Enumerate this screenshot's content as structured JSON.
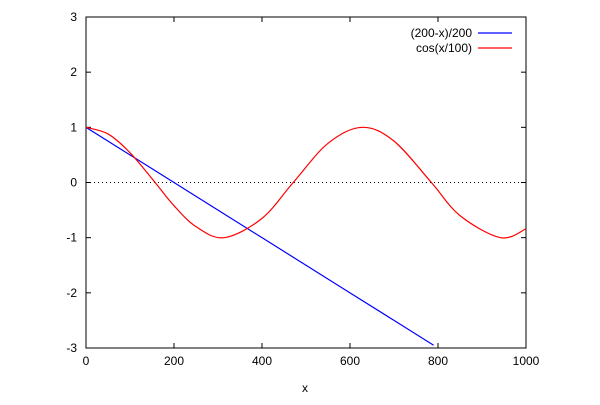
{
  "chart_data": {
    "type": "line",
    "title": "",
    "xlabel": "x",
    "ylabel": "",
    "xlim": [
      0,
      1000
    ],
    "ylim": [
      -3,
      3
    ],
    "x_ticks": [
      0,
      200,
      400,
      600,
      800,
      1000
    ],
    "y_ticks": [
      -3,
      -2,
      -1,
      0,
      1,
      2,
      3
    ],
    "grid": false,
    "legend_position": "top-right",
    "zero_line": {
      "y": 0,
      "style": "dotted",
      "color": "#000000"
    },
    "series": [
      {
        "name": "(200-x)/200",
        "color": "#0000ff",
        "x": [
          0,
          100,
          200,
          300,
          400,
          500,
          600,
          700,
          790
        ],
        "y": [
          1.0,
          0.5,
          0.0,
          -0.5,
          -1.0,
          -1.5,
          -2.0,
          -2.5,
          -2.95
        ]
      },
      {
        "name": "cos(x/100)",
        "color": "#ff0000",
        "x": [
          0,
          50,
          100,
          157,
          200,
          250,
          314,
          400,
          471,
          550,
          628,
          700,
          785,
          850,
          942,
          1000
        ],
        "y": [
          1.0,
          0.88,
          0.54,
          0.0,
          -0.42,
          -0.8,
          -1.0,
          -0.65,
          0.0,
          0.71,
          1.0,
          0.75,
          0.0,
          -0.6,
          -1.0,
          -0.84
        ]
      }
    ]
  }
}
